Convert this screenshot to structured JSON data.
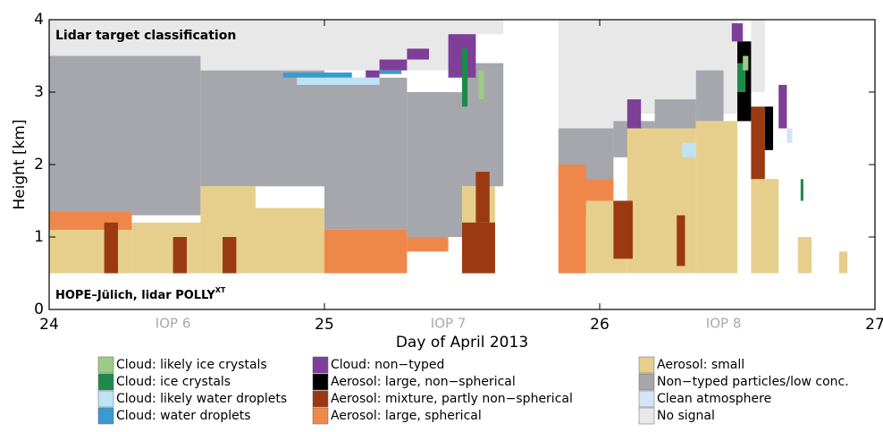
{
  "chart_data": {
    "type": "classification",
    "title": "Lidar target classification",
    "station": {
      "text": "HOPE–Jülich, lidar POLLY",
      "sup": "XT"
    },
    "xlabel": "Day of April 2013",
    "ylabel": "Height [km]",
    "xlim": [
      24,
      27
    ],
    "xticks": [
      24,
      25,
      26,
      27
    ],
    "ylim": [
      0,
      4
    ],
    "yticks": [
      0,
      1,
      2,
      3,
      4
    ],
    "annotations": [
      {
        "text": "IOP 6",
        "x": 24.45
      },
      {
        "text": "IOP 7",
        "x": 25.45
      },
      {
        "text": "IOP 8",
        "x": 26.45
      }
    ],
    "series": [
      {
        "name": "Cloud: likely ice crystals",
        "color": "#9ccb86",
        "boxes": [
          [
            25.56,
            25.58,
            2.9,
            3.3
          ],
          [
            26.52,
            26.54,
            3.3,
            3.5
          ]
        ]
      },
      {
        "name": "Cloud: ice crystals",
        "color": "#1e8a4a",
        "boxes": [
          [
            25.5,
            25.52,
            2.8,
            3.6
          ],
          [
            26.5,
            26.53,
            3.0,
            3.4
          ],
          [
            26.73,
            26.74,
            1.5,
            1.8
          ]
        ]
      },
      {
        "name": "Cloud: likely water droplets",
        "color": "#bde4f5",
        "boxes": [
          [
            24.9,
            25.2,
            3.1,
            3.2
          ],
          [
            26.3,
            26.35,
            2.1,
            2.3
          ]
        ]
      },
      {
        "name": "Cloud: water droplets",
        "color": "#3a9ad0",
        "boxes": [
          [
            24.85,
            25.1,
            3.2,
            3.27
          ],
          [
            25.2,
            25.28,
            3.25,
            3.3
          ]
        ]
      },
      {
        "name": "Cloud: non−typed",
        "color": "#7d3f98",
        "boxes": [
          [
            25.2,
            25.3,
            3.3,
            3.45
          ],
          [
            25.45,
            25.55,
            3.2,
            3.8
          ],
          [
            25.15,
            25.2,
            3.2,
            3.3
          ],
          [
            25.3,
            25.38,
            3.45,
            3.6
          ],
          [
            26.48,
            26.52,
            3.7,
            3.95
          ],
          [
            26.65,
            26.68,
            2.5,
            3.1
          ],
          [
            26.1,
            26.15,
            2.5,
            2.9
          ]
        ]
      },
      {
        "name": "Aerosol: large, non−spherical",
        "color": "#000000",
        "boxes": [
          [
            26.5,
            26.55,
            2.6,
            3.7
          ],
          [
            26.6,
            26.63,
            2.2,
            2.8
          ]
        ]
      },
      {
        "name": "Aerosol: mixture, partly non−spherical",
        "color": "#9b3a12",
        "boxes": [
          [
            24.2,
            24.25,
            0.5,
            1.2
          ],
          [
            24.45,
            24.5,
            0.5,
            1.0
          ],
          [
            24.63,
            24.68,
            0.5,
            1.0
          ],
          [
            25.5,
            25.62,
            0.5,
            1.2
          ],
          [
            25.55,
            25.6,
            1.2,
            1.9
          ],
          [
            26.05,
            26.12,
            0.7,
            1.5
          ],
          [
            26.28,
            26.31,
            0.6,
            1.3
          ],
          [
            26.55,
            26.6,
            1.8,
            2.8
          ]
        ]
      },
      {
        "name": "Aerosol: large, spherical",
        "color": "#f0874a",
        "boxes": [
          [
            24,
            24.3,
            1.1,
            1.35
          ],
          [
            25.0,
            25.3,
            0.5,
            1.1
          ],
          [
            25.3,
            25.45,
            0.8,
            1.0
          ],
          [
            25.85,
            25.95,
            0.5,
            2.0
          ],
          [
            25.95,
            26.05,
            1.5,
            1.8
          ]
        ]
      },
      {
        "name": "Aerosol: small",
        "color": "#e6cf8d",
        "boxes": [
          [
            24,
            24.3,
            0.5,
            1.3
          ],
          [
            24.3,
            24.55,
            0.5,
            1.2
          ],
          [
            24.55,
            24.75,
            0.5,
            1.7
          ],
          [
            24.75,
            25.0,
            0.5,
            1.4
          ],
          [
            25.0,
            25.1,
            0.5,
            1.1
          ],
          [
            25.5,
            25.62,
            0.5,
            1.7
          ],
          [
            25.95,
            26.1,
            0.5,
            1.5
          ],
          [
            26.1,
            26.35,
            0.5,
            2.5
          ],
          [
            26.35,
            26.5,
            0.5,
            2.6
          ],
          [
            26.55,
            26.65,
            0.5,
            1.8
          ],
          [
            26.72,
            26.77,
            0.5,
            1.0
          ],
          [
            26.87,
            26.9,
            0.5,
            0.8
          ]
        ]
      },
      {
        "name": "Non−typed particles/low conc.",
        "color": "#a5a7ad",
        "boxes": [
          [
            24,
            24.55,
            1.3,
            3.5
          ],
          [
            24.55,
            25.0,
            1.7,
            3.3
          ],
          [
            25.0,
            25.3,
            1.1,
            3.2
          ],
          [
            25.3,
            25.5,
            1.0,
            3.0
          ],
          [
            25.5,
            25.65,
            1.7,
            3.4
          ],
          [
            25.85,
            26.05,
            1.3,
            2.5
          ],
          [
            26.05,
            26.2,
            2.1,
            2.6
          ],
          [
            26.2,
            26.35,
            2.5,
            2.9
          ],
          [
            26.35,
            26.45,
            2.6,
            3.3
          ]
        ]
      },
      {
        "name": "Clean atmosphere",
        "color": "#d3e5f7",
        "boxes": [
          [
            26.68,
            26.7,
            2.3,
            2.5
          ]
        ]
      },
      {
        "name": "No signal",
        "color": "#e8e8e8",
        "boxes": [
          [
            24,
            25.5,
            3.3,
            4
          ],
          [
            25.5,
            25.65,
            3.8,
            4
          ],
          [
            25.85,
            26.1,
            2.5,
            4
          ],
          [
            26.1,
            26.5,
            2.7,
            4
          ],
          [
            26.55,
            26.6,
            3.0,
            4
          ]
        ]
      }
    ]
  }
}
